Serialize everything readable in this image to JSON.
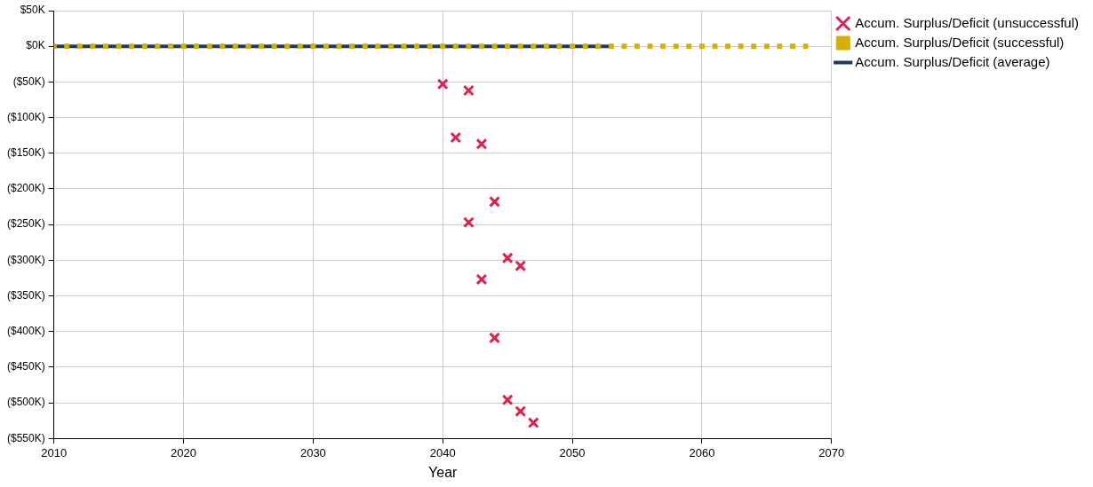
{
  "chart_data": {
    "type": "scatter",
    "xlabel": "Year",
    "xlim": [
      2010,
      2070
    ],
    "xticks": [
      2010,
      2020,
      2030,
      2040,
      2050,
      2060,
      2070
    ],
    "ylim": [
      -550,
      50
    ],
    "yticks": [
      {
        "value": 50,
        "label": "$50K"
      },
      {
        "value": 0,
        "label": "$0K"
      },
      {
        "value": -50,
        "label": "($50K)"
      },
      {
        "value": -100,
        "label": "($100K)"
      },
      {
        "value": -150,
        "label": "($150K)"
      },
      {
        "value": -200,
        "label": "($200K)"
      },
      {
        "value": -250,
        "label": "($250K)"
      },
      {
        "value": -300,
        "label": "($300K)"
      },
      {
        "value": -350,
        "label": "($350K)"
      },
      {
        "value": -400,
        "label": "($400K)"
      },
      {
        "value": -450,
        "label": "($450K)"
      },
      {
        "value": -500,
        "label": "($500K)"
      },
      {
        "value": -550,
        "label": "($550K)"
      }
    ],
    "grid": true,
    "legend": "top right",
    "series": [
      {
        "name": "Accum. Surplus/Deficit (unsuccessful)",
        "type": "scatter",
        "marker": "cross",
        "color": "#e2204f",
        "x": [
          2040,
          2042,
          2041,
          2043,
          2044,
          2042,
          2045,
          2046,
          2043,
          2044,
          2045,
          2046,
          2047
        ],
        "values": [
          -53,
          -62,
          -128,
          -137,
          -218,
          -247,
          -297,
          -308,
          -327,
          -409,
          -496,
          -512,
          -528
        ]
      },
      {
        "name": "Accum. Surplus/Deficit (successful)",
        "type": "scatter",
        "marker": "square",
        "color": "#d4b000",
        "x": [
          2010,
          2011,
          2012,
          2013,
          2014,
          2015,
          2016,
          2017,
          2018,
          2019,
          2020,
          2021,
          2022,
          2023,
          2024,
          2025,
          2026,
          2027,
          2028,
          2029,
          2030,
          2031,
          2032,
          2033,
          2034,
          2035,
          2036,
          2037,
          2038,
          2039,
          2040,
          2041,
          2042,
          2043,
          2044,
          2045,
          2046,
          2047,
          2048,
          2049,
          2050,
          2051,
          2052,
          2053,
          2054,
          2055,
          2056,
          2057,
          2058,
          2059,
          2060,
          2061,
          2062,
          2063,
          2064,
          2065,
          2066,
          2067,
          2068
        ],
        "values": [
          0,
          0,
          0,
          0,
          0,
          0,
          0,
          0,
          0,
          0,
          0,
          0,
          0,
          0,
          0,
          0,
          0,
          0,
          0,
          0,
          0,
          0,
          0,
          0,
          0,
          0,
          0,
          0,
          0,
          0,
          0,
          0,
          0,
          0,
          0,
          0,
          0,
          0,
          0,
          0,
          0,
          0,
          0,
          0,
          0,
          0,
          0,
          0,
          0,
          0,
          0,
          0,
          0,
          0,
          0,
          0,
          0,
          0,
          0
        ]
      },
      {
        "name": "Accum. Surplus/Deficit (average)",
        "type": "line",
        "marker": "none",
        "color": "#1f3a5f",
        "x": [
          2010,
          2053
        ],
        "values": [
          0,
          0
        ]
      }
    ]
  }
}
